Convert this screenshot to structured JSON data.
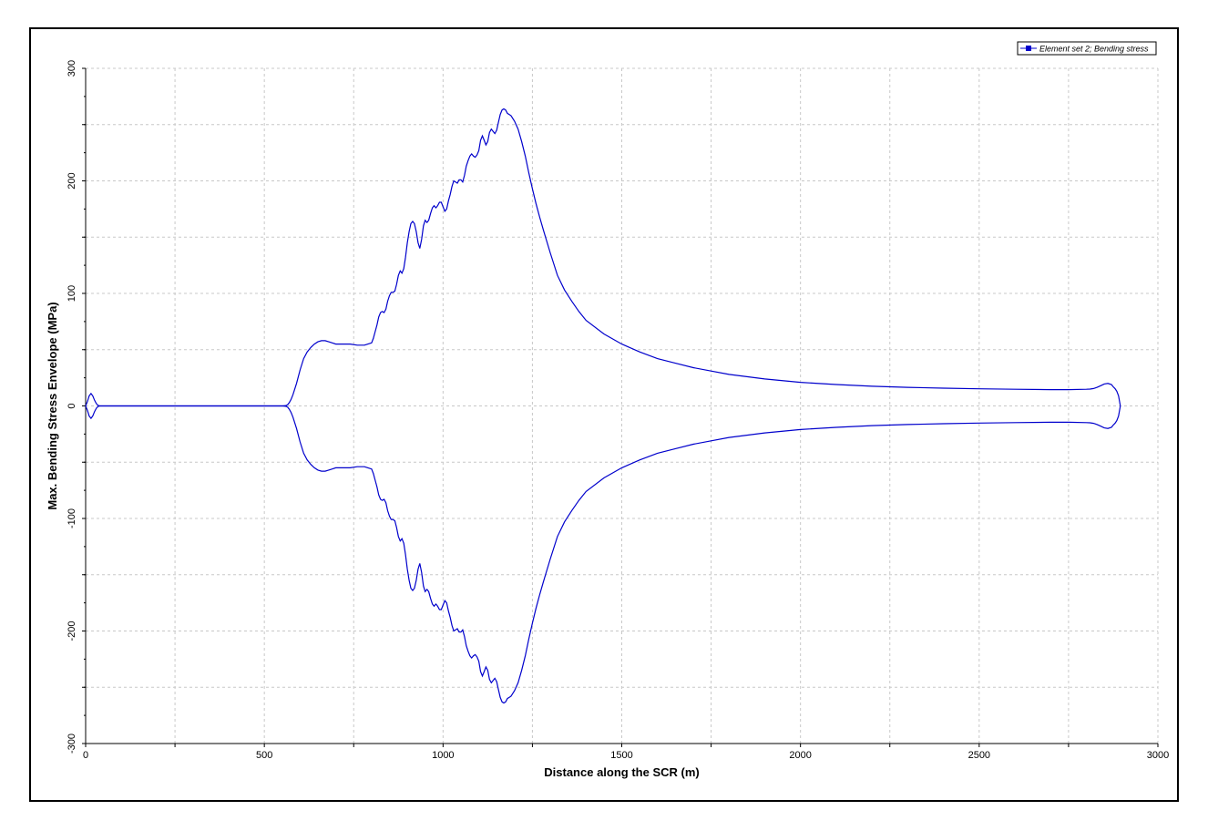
{
  "chart_data": {
    "type": "line",
    "title": "",
    "xlabel": "Distance along the SCR (m)",
    "ylabel": "Max. Bending Stress Envelope (MPa)",
    "xlim": [
      0,
      3000
    ],
    "ylim": [
      -300,
      300
    ],
    "x_ticks": [
      0,
      500,
      1000,
      1500,
      2000,
      2500,
      3000
    ],
    "y_ticks": [
      300,
      200,
      100,
      0,
      -100,
      -200,
      -300
    ],
    "x_minor_step": 250,
    "y_minor_step": 50,
    "grid": true,
    "legend_position": "top-right",
    "colors": {
      "series": "#0000cc",
      "grid": "#c8c8c8",
      "axis": "#000000"
    },
    "series": [
      {
        "name": "Element set  2; Bending stress",
        "envelope": "symmetric",
        "x": [
          0,
          5,
          10,
          15,
          20,
          25,
          30,
          35,
          40,
          45,
          50,
          100,
          200,
          300,
          400,
          500,
          550,
          560,
          565,
          570,
          575,
          580,
          590,
          600,
          610,
          620,
          630,
          640,
          650,
          660,
          670,
          680,
          690,
          700,
          720,
          740,
          760,
          770,
          780,
          790,
          800,
          805,
          810,
          815,
          820,
          825,
          830,
          835,
          840,
          845,
          850,
          855,
          860,
          865,
          870,
          875,
          880,
          885,
          890,
          895,
          900,
          905,
          910,
          915,
          920,
          925,
          930,
          935,
          940,
          945,
          950,
          955,
          960,
          965,
          970,
          975,
          980,
          985,
          990,
          995,
          1000,
          1005,
          1010,
          1015,
          1020,
          1025,
          1030,
          1035,
          1040,
          1045,
          1050,
          1055,
          1060,
          1065,
          1070,
          1075,
          1080,
          1085,
          1090,
          1095,
          1100,
          1105,
          1110,
          1115,
          1120,
          1125,
          1130,
          1135,
          1140,
          1145,
          1150,
          1155,
          1160,
          1165,
          1170,
          1175,
          1180,
          1185,
          1190,
          1200,
          1210,
          1220,
          1230,
          1240,
          1250,
          1260,
          1270,
          1280,
          1300,
          1320,
          1340,
          1360,
          1380,
          1400,
          1450,
          1500,
          1550,
          1600,
          1650,
          1700,
          1750,
          1800,
          1850,
          1900,
          2000,
          2100,
          2200,
          2300,
          2400,
          2500,
          2600,
          2700,
          2750,
          2800,
          2810,
          2820,
          2830,
          2840,
          2850,
          2860,
          2870,
          2875,
          2880,
          2885,
          2890,
          2895
        ],
        "y_upper": [
          0,
          4,
          9,
          11,
          9,
          5,
          2,
          0.5,
          0,
          0,
          0,
          0,
          0,
          0,
          0,
          0,
          0,
          0.3,
          1,
          3,
          6,
          10,
          20,
          32,
          42,
          48,
          52,
          55,
          57,
          58,
          58,
          57,
          56,
          55,
          55,
          55,
          54,
          54,
          54,
          55,
          56,
          60,
          66,
          72,
          79,
          83,
          84,
          83,
          86,
          93,
          98,
          101,
          101,
          102,
          108,
          116,
          120,
          118,
          122,
          132,
          145,
          155,
          162,
          164,
          162,
          155,
          145,
          140,
          148,
          160,
          165,
          163,
          165,
          171,
          176,
          178,
          176,
          178,
          181,
          181,
          177,
          173,
          175,
          182,
          188,
          195,
          200,
          199,
          198,
          201,
          201,
          199,
          205,
          213,
          218,
          222,
          224,
          222,
          221,
          223,
          227,
          236,
          240,
          236,
          232,
          235,
          243,
          246,
          244,
          242,
          245,
          252,
          259,
          263,
          264,
          263,
          260,
          259,
          258,
          253,
          246,
          235,
          222,
          207,
          193,
          180,
          168,
          157,
          136,
          116,
          103,
          93,
          84,
          76,
          64,
          55,
          48,
          42,
          38,
          34,
          31,
          28,
          26,
          24,
          21,
          19,
          17.5,
          16.5,
          15.8,
          15.2,
          14.8,
          14.5,
          14.5,
          14.8,
          15,
          15.5,
          16.5,
          18,
          19.5,
          20,
          19,
          17,
          15.5,
          13,
          9,
          0
        ]
      }
    ]
  }
}
